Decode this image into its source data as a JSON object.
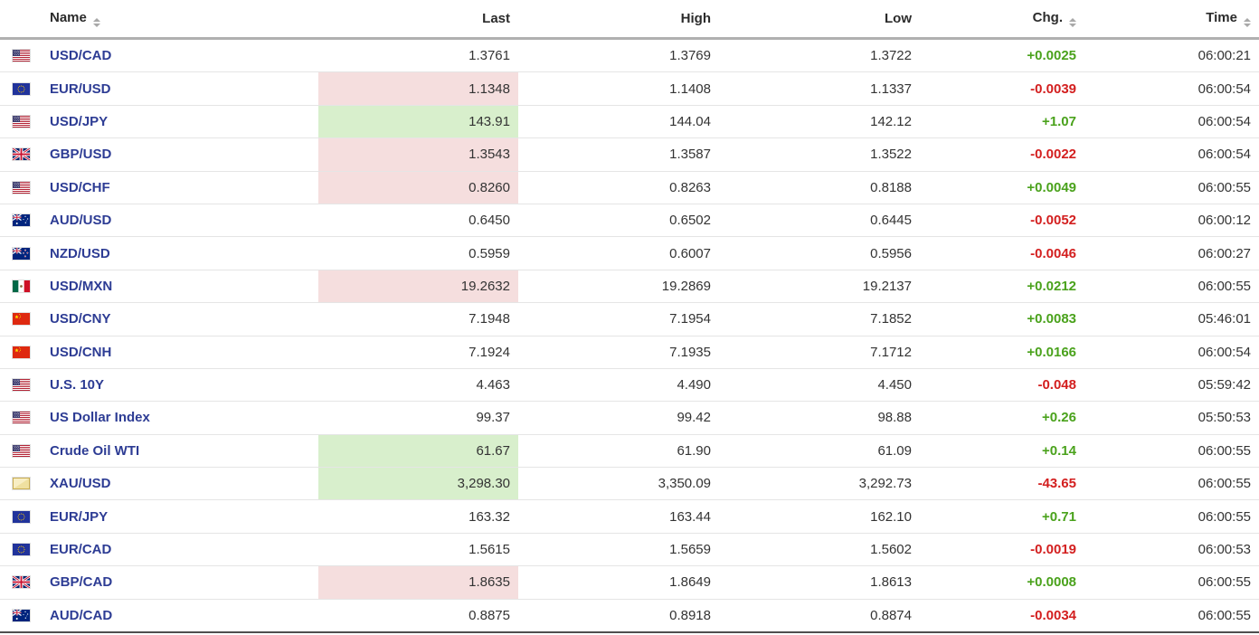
{
  "colors": {
    "positive_green": "#4aa21c",
    "negative_red": "#d31f1f",
    "highlight_up_bg": "#d8efcc",
    "highlight_down_bg": "#f5dede",
    "instrument_link_blue": "#2d3c94",
    "header_text": "#2b2b2b",
    "value_text": "#333333",
    "row_divider": "#e5e5e5",
    "header_divider": "#b0b0b0"
  },
  "table": {
    "headers": [
      {
        "label": "Name",
        "sortable": true
      },
      {
        "label": "Last",
        "sortable": false
      },
      {
        "label": "High",
        "sortable": false
      },
      {
        "label": "Low",
        "sortable": false
      },
      {
        "label": "Chg.",
        "sortable": true
      },
      {
        "label": "Time",
        "sortable": true
      }
    ],
    "rows": [
      {
        "flag": "us",
        "name": "USD/CAD",
        "last": "1.3761",
        "high": "1.3769",
        "low": "1.3722",
        "chg": "+0.0025",
        "chg_dir": "up",
        "time": "06:00:21",
        "last_bg": "none"
      },
      {
        "flag": "eu",
        "name": "EUR/USD",
        "last": "1.1348",
        "high": "1.1408",
        "low": "1.1337",
        "chg": "-0.0039",
        "chg_dir": "down",
        "time": "06:00:54",
        "last_bg": "down"
      },
      {
        "flag": "us",
        "name": "USD/JPY",
        "last": "143.91",
        "high": "144.04",
        "low": "142.12",
        "chg": "+1.07",
        "chg_dir": "up",
        "time": "06:00:54",
        "last_bg": "up"
      },
      {
        "flag": "uk",
        "name": "GBP/USD",
        "last": "1.3543",
        "high": "1.3587",
        "low": "1.3522",
        "chg": "-0.0022",
        "chg_dir": "down",
        "time": "06:00:54",
        "last_bg": "down"
      },
      {
        "flag": "us",
        "name": "USD/CHF",
        "last": "0.8260",
        "high": "0.8263",
        "low": "0.8188",
        "chg": "+0.0049",
        "chg_dir": "up",
        "time": "06:00:55",
        "last_bg": "down"
      },
      {
        "flag": "au",
        "name": "AUD/USD",
        "last": "0.6450",
        "high": "0.6502",
        "low": "0.6445",
        "chg": "-0.0052",
        "chg_dir": "down",
        "time": "06:00:12",
        "last_bg": "none"
      },
      {
        "flag": "nz",
        "name": "NZD/USD",
        "last": "0.5959",
        "high": "0.6007",
        "low": "0.5956",
        "chg": "-0.0046",
        "chg_dir": "down",
        "time": "06:00:27",
        "last_bg": "none"
      },
      {
        "flag": "mx",
        "name": "USD/MXN",
        "last": "19.2632",
        "high": "19.2869",
        "low": "19.2137",
        "chg": "+0.0212",
        "chg_dir": "up",
        "time": "06:00:55",
        "last_bg": "down"
      },
      {
        "flag": "cn",
        "name": "USD/CNY",
        "last": "7.1948",
        "high": "7.1954",
        "low": "7.1852",
        "chg": "+0.0083",
        "chg_dir": "up",
        "time": "05:46:01",
        "last_bg": "none"
      },
      {
        "flag": "cn",
        "name": "USD/CNH",
        "last": "7.1924",
        "high": "7.1935",
        "low": "7.1712",
        "chg": "+0.0166",
        "chg_dir": "up",
        "time": "06:00:54",
        "last_bg": "none"
      },
      {
        "flag": "us",
        "name": "U.S. 10Y",
        "last": "4.463",
        "high": "4.490",
        "low": "4.450",
        "chg": "-0.048",
        "chg_dir": "down",
        "time": "05:59:42",
        "last_bg": "none"
      },
      {
        "flag": "us",
        "name": "US Dollar Index",
        "last": "99.37",
        "high": "99.42",
        "low": "98.88",
        "chg": "+0.26",
        "chg_dir": "up",
        "time": "05:50:53",
        "last_bg": "none"
      },
      {
        "flag": "us",
        "name": "Crude Oil WTI",
        "last": "61.67",
        "high": "61.90",
        "low": "61.09",
        "chg": "+0.14",
        "chg_dir": "up",
        "time": "06:00:55",
        "last_bg": "up"
      },
      {
        "flag": "gold",
        "name": "XAU/USD",
        "last": "3,298.30",
        "high": "3,350.09",
        "low": "3,292.73",
        "chg": "-43.65",
        "chg_dir": "down",
        "time": "06:00:55",
        "last_bg": "up"
      },
      {
        "flag": "eu",
        "name": "EUR/JPY",
        "last": "163.32",
        "high": "163.44",
        "low": "162.10",
        "chg": "+0.71",
        "chg_dir": "up",
        "time": "06:00:55",
        "last_bg": "none"
      },
      {
        "flag": "eu",
        "name": "EUR/CAD",
        "last": "1.5615",
        "high": "1.5659",
        "low": "1.5602",
        "chg": "-0.0019",
        "chg_dir": "down",
        "time": "06:00:53",
        "last_bg": "none"
      },
      {
        "flag": "uk",
        "name": "GBP/CAD",
        "last": "1.8635",
        "high": "1.8649",
        "low": "1.8613",
        "chg": "+0.0008",
        "chg_dir": "up",
        "time": "06:00:55",
        "last_bg": "down"
      },
      {
        "flag": "au",
        "name": "AUD/CAD",
        "last": "0.8875",
        "high": "0.8918",
        "low": "0.8874",
        "chg": "-0.0034",
        "chg_dir": "down",
        "time": "06:00:55",
        "last_bg": "none"
      }
    ]
  }
}
